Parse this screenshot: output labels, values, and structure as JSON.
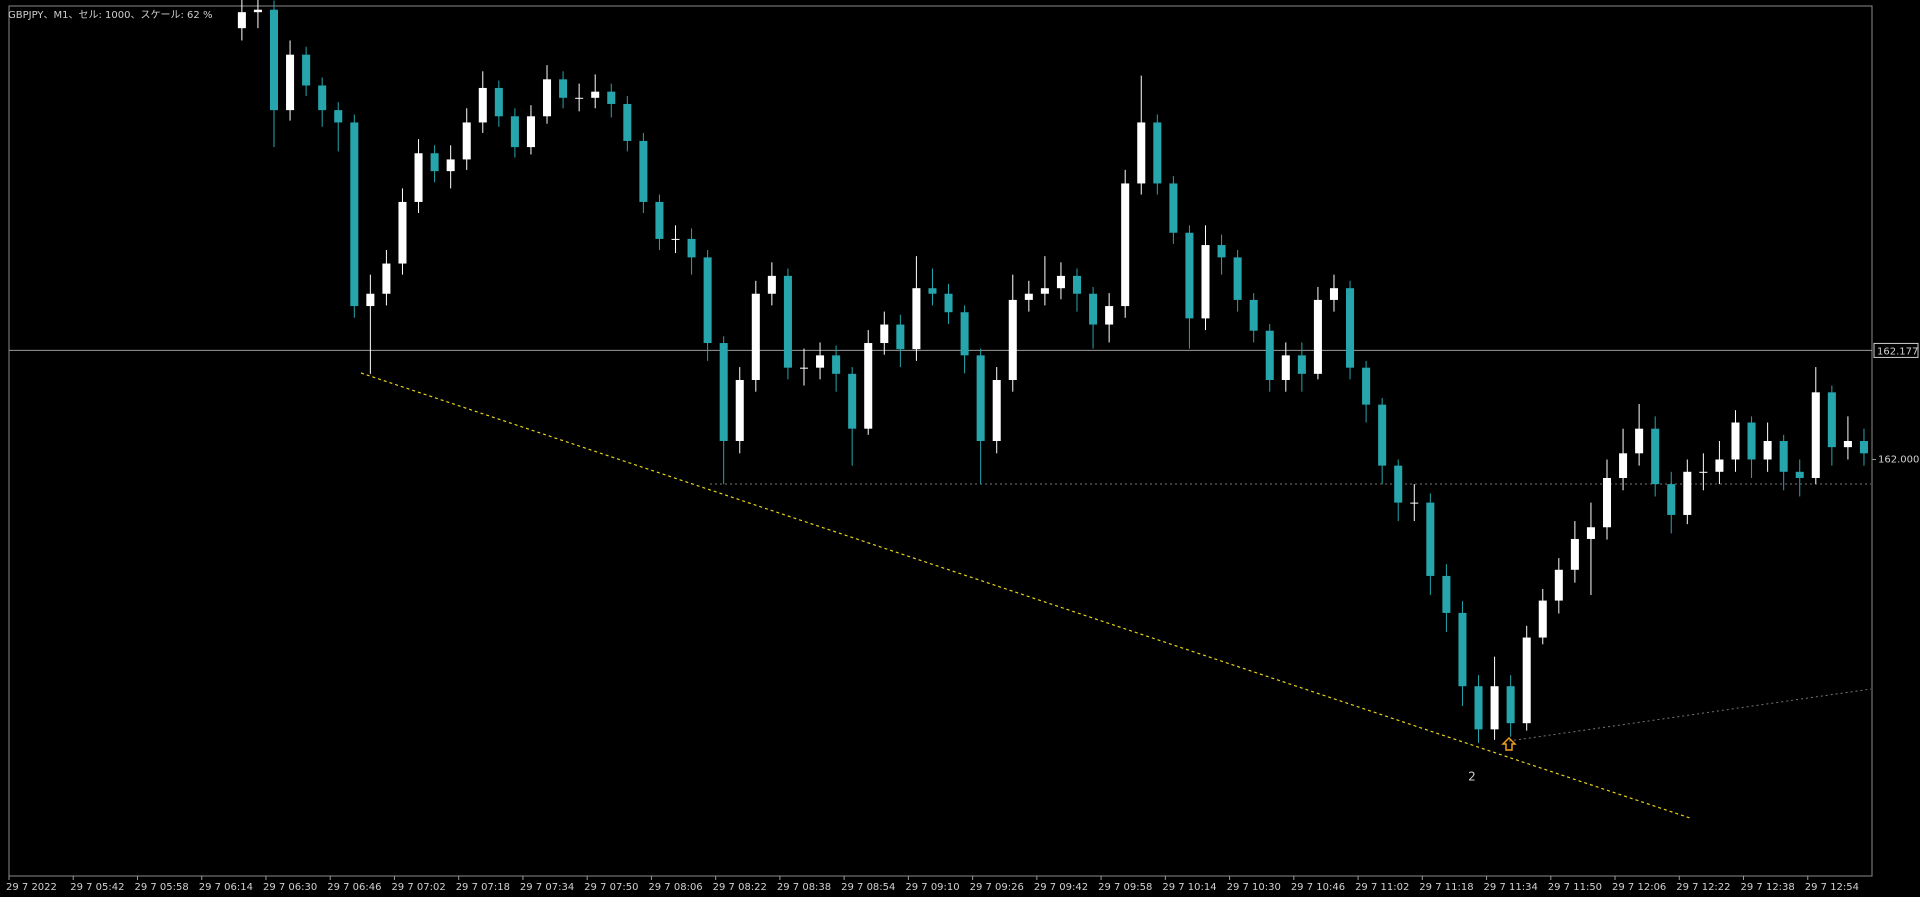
{
  "chart_data": {
    "type": "candlestick",
    "title": "GBPJPY、M1、セル: 1000、スケール: 62 %",
    "categories": [
      "29 7 2022",
      null,
      null,
      null,
      "29 7 05:42",
      null,
      null,
      null,
      "29 7 05:58",
      null,
      null,
      null,
      "29 7 06:14",
      null,
      null,
      null,
      "29 7 06:30",
      null,
      null,
      null,
      "29 7 06:46",
      null,
      null,
      null,
      "29 7 07:02",
      null,
      null,
      null,
      "29 7 07:18",
      null,
      null,
      null,
      "29 7 07:34",
      null,
      null,
      null,
      "29 7 07:50",
      null,
      null,
      null,
      "29 7 08:06",
      null,
      null,
      null,
      "29 7 08:22",
      null,
      null,
      null,
      "29 7 08:38",
      null,
      null,
      null,
      "29 7 08:54",
      null,
      null,
      null,
      "29 7 09:10",
      null,
      null,
      null,
      "29 7 09:26",
      null,
      null,
      null,
      "29 7 09:42",
      null,
      null,
      null,
      "29 7 09:58",
      null,
      null,
      null,
      "29 7 10:14",
      null,
      null,
      null,
      "29 7 10:30",
      null,
      null,
      null,
      "29 7 10:46",
      null,
      null,
      null,
      "29 7 11:02",
      null,
      null,
      null,
      "29 7 11:18",
      null,
      null,
      null,
      "29 7 11:34",
      null,
      null,
      null,
      "29 7 11:50",
      null,
      null,
      null,
      "29 7 12:06",
      null,
      null,
      null,
      "29 7 12:22",
      null,
      null,
      null,
      "29 7 12:38",
      null,
      null,
      null,
      "29 7 12:54",
      null,
      null,
      null
    ],
    "ohlc": [
      null,
      null,
      null,
      null,
      null,
      null,
      null,
      null,
      null,
      null,
      null,
      null,
      null,
      null,
      [
        162.7,
        162.75,
        162.68,
        162.726
      ],
      [
        162.726,
        162.75,
        162.7,
        162.73
      ],
      [
        162.73,
        162.745,
        162.507,
        162.567
      ],
      [
        162.567,
        162.68,
        162.55,
        162.657
      ],
      [
        162.657,
        162.67,
        162.59,
        162.607
      ],
      [
        162.607,
        162.62,
        162.54,
        162.567
      ],
      [
        162.567,
        162.58,
        162.5,
        162.547
      ],
      [
        162.547,
        162.56,
        162.23,
        162.249
      ],
      [
        162.249,
        162.3,
        162.139,
        162.269
      ],
      [
        162.269,
        162.34,
        162.25,
        162.318
      ],
      [
        162.318,
        162.44,
        162.3,
        162.418
      ],
      [
        162.418,
        162.52,
        162.4,
        162.497
      ],
      [
        162.497,
        162.51,
        162.45,
        162.468
      ],
      [
        162.468,
        162.51,
        162.44,
        162.487
      ],
      [
        162.487,
        162.57,
        162.47,
        162.547
      ],
      [
        162.547,
        162.63,
        162.53,
        162.603
      ],
      [
        162.603,
        162.615,
        162.54,
        162.557
      ],
      [
        162.557,
        162.57,
        162.49,
        162.507
      ],
      [
        162.507,
        162.575,
        162.495,
        162.557
      ],
      [
        162.557,
        162.64,
        162.545,
        162.617
      ],
      [
        162.617,
        162.63,
        162.57,
        162.587
      ],
      [
        162.587,
        162.61,
        162.565,
        162.587
      ],
      [
        162.587,
        162.625,
        162.57,
        162.597
      ],
      [
        162.597,
        162.61,
        162.555,
        162.577
      ],
      [
        162.577,
        162.59,
        162.5,
        162.517
      ],
      [
        162.517,
        162.53,
        162.4,
        162.418
      ],
      [
        162.418,
        162.43,
        162.34,
        162.358
      ],
      [
        162.358,
        162.38,
        162.335,
        162.358
      ],
      [
        162.358,
        162.375,
        162.3,
        162.328
      ],
      [
        162.328,
        162.34,
        162.16,
        162.189
      ],
      [
        162.189,
        162.2,
        161.96,
        162.03
      ],
      [
        162.03,
        162.15,
        162.01,
        162.129
      ],
      [
        162.129,
        162.29,
        162.11,
        162.269
      ],
      [
        162.269,
        162.32,
        162.25,
        162.298
      ],
      [
        162.298,
        162.31,
        162.13,
        162.149
      ],
      [
        162.149,
        162.18,
        162.12,
        162.149
      ],
      [
        162.149,
        162.19,
        162.13,
        162.169
      ],
      [
        162.169,
        162.185,
        162.11,
        162.139
      ],
      [
        162.139,
        162.15,
        161.99,
        162.05
      ],
      [
        162.05,
        162.21,
        162.04,
        162.189
      ],
      [
        162.189,
        162.24,
        162.17,
        162.219
      ],
      [
        162.219,
        162.235,
        162.15,
        162.179
      ],
      [
        162.179,
        162.33,
        162.16,
        162.278
      ],
      [
        162.278,
        162.31,
        162.25,
        162.269
      ],
      [
        162.269,
        162.285,
        162.22,
        162.239
      ],
      [
        162.239,
        162.25,
        162.14,
        162.169
      ],
      [
        162.169,
        162.18,
        161.96,
        162.03
      ],
      [
        162.03,
        162.15,
        162.01,
        162.129
      ],
      [
        162.129,
        162.3,
        162.11,
        162.259
      ],
      [
        162.259,
        162.29,
        162.24,
        162.269
      ],
      [
        162.269,
        162.33,
        162.25,
        162.278
      ],
      [
        162.278,
        162.32,
        162.26,
        162.298
      ],
      [
        162.298,
        162.31,
        162.24,
        162.269
      ],
      [
        162.269,
        162.28,
        162.18,
        162.219
      ],
      [
        162.219,
        162.27,
        162.19,
        162.249
      ],
      [
        162.249,
        162.47,
        162.23,
        162.448
      ],
      [
        162.448,
        162.623,
        162.43,
        162.547
      ],
      [
        162.547,
        162.56,
        162.43,
        162.448
      ],
      [
        162.448,
        162.46,
        162.35,
        162.368
      ],
      [
        162.368,
        162.38,
        162.18,
        162.229
      ],
      [
        162.229,
        162.38,
        162.21,
        162.348
      ],
      [
        162.348,
        162.365,
        162.3,
        162.328
      ],
      [
        162.328,
        162.34,
        162.24,
        162.259
      ],
      [
        162.259,
        162.27,
        162.19,
        162.209
      ],
      [
        162.209,
        162.22,
        162.11,
        162.129
      ],
      [
        162.129,
        162.19,
        162.11,
        162.169
      ],
      [
        162.169,
        162.19,
        162.11,
        162.139
      ],
      [
        162.139,
        162.28,
        162.13,
        162.259
      ],
      [
        162.259,
        162.3,
        162.24,
        162.278
      ],
      [
        162.278,
        162.29,
        162.13,
        162.149
      ],
      [
        162.149,
        162.16,
        162.06,
        162.089
      ],
      [
        162.089,
        162.1,
        161.96,
        161.99
      ],
      [
        161.99,
        162.0,
        161.9,
        161.93
      ],
      [
        161.93,
        161.96,
        161.9,
        161.93
      ],
      [
        161.93,
        161.945,
        161.78,
        161.811
      ],
      [
        161.811,
        161.83,
        161.72,
        161.751
      ],
      [
        161.751,
        161.77,
        161.6,
        161.632
      ],
      [
        161.632,
        161.65,
        161.54,
        161.562
      ],
      [
        161.562,
        161.68,
        161.545,
        161.632
      ],
      [
        161.632,
        161.65,
        161.55,
        161.572
      ],
      [
        161.572,
        161.73,
        161.56,
        161.711
      ],
      [
        161.711,
        161.79,
        161.7,
        161.771
      ],
      [
        161.771,
        161.84,
        161.75,
        161.821
      ],
      [
        161.821,
        161.9,
        161.8,
        161.871
      ],
      [
        161.871,
        161.93,
        161.78,
        161.89
      ],
      [
        161.89,
        162.0,
        161.87,
        161.97
      ],
      [
        161.97,
        162.05,
        161.95,
        162.01
      ],
      [
        162.01,
        162.09,
        161.99,
        162.05
      ],
      [
        162.05,
        162.07,
        161.94,
        161.96
      ],
      [
        161.96,
        161.98,
        161.88,
        161.91
      ],
      [
        161.91,
        162.0,
        161.895,
        161.98
      ],
      [
        161.98,
        162.01,
        161.95,
        161.98
      ],
      [
        161.98,
        162.03,
        161.96,
        162.0
      ],
      [
        162.0,
        162.08,
        161.98,
        162.06
      ],
      [
        162.06,
        162.07,
        161.97,
        162.0
      ],
      [
        162.0,
        162.06,
        161.98,
        162.03
      ],
      [
        162.03,
        162.04,
        161.95,
        161.98
      ],
      [
        161.98,
        162.0,
        161.94,
        161.97
      ],
      [
        161.97,
        162.15,
        161.96,
        162.109
      ],
      [
        162.109,
        162.12,
        161.99,
        162.02
      ],
      [
        162.02,
        162.07,
        162.0,
        162.03
      ],
      [
        162.03,
        162.05,
        161.99,
        162.01
      ]
    ],
    "ylim": [
      161.324,
      162.736
    ],
    "yticks": [
      {
        "value": 162,
        "label": "162.000"
      }
    ],
    "price_line": 162.177,
    "annotation": "2",
    "colors": {
      "up": "#ffffff",
      "down": "#26a5ad",
      "background": "#000000",
      "axis": "#9a9a9a"
    }
  }
}
